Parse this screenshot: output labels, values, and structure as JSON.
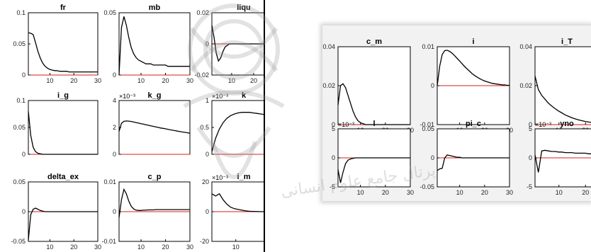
{
  "chart_data": [
    {
      "type": "line",
      "title": "fr",
      "ylim": [
        0,
        0.1
      ],
      "yticks": [
        "0",
        "0.05",
        "0.1"
      ],
      "xticks": [
        "10",
        "20",
        "30"
      ],
      "xlim": [
        1,
        30
      ],
      "series": [
        {
          "values": [
            0.068,
            0.067,
            0.065,
            0.052,
            0.038,
            0.027,
            0.019,
            0.014,
            0.011,
            0.009,
            0.008,
            0.007,
            0.007,
            0.006,
            0.006,
            0.006,
            0.006,
            0.005,
            0.005,
            0.005,
            0.005,
            0.005,
            0.005,
            0.005,
            0.005,
            0.005,
            0.005,
            0.005,
            0.005,
            0.005
          ]
        }
      ]
    },
    {
      "type": "line",
      "title": "mb",
      "ylim": [
        0,
        0.05
      ],
      "yticks": [
        "0",
        "0.05"
      ],
      "xticks": [
        "10",
        "20",
        "30"
      ],
      "xlim": [
        1,
        30
      ],
      "series": [
        {
          "values": [
            0.0,
            0.038,
            0.047,
            0.04,
            0.03,
            0.022,
            0.017,
            0.014,
            0.012,
            0.011,
            0.01,
            0.009,
            0.009,
            0.009,
            0.008,
            0.008,
            0.008,
            0.008,
            0.008,
            0.008,
            0.007,
            0.007,
            0.007,
            0.007,
            0.007,
            0.007,
            0.007,
            0.007,
            0.007,
            0.007
          ]
        }
      ]
    },
    {
      "type": "line",
      "title": "liqu",
      "ylim": [
        -0.02,
        0.02
      ],
      "yticks": [
        "-0.02",
        "0",
        "0.02"
      ],
      "xticks": [
        "10",
        "20"
      ],
      "xlim": [
        1,
        30
      ],
      "series": [
        {
          "values": [
            0.012,
            0.004,
            -0.006,
            -0.011,
            -0.009,
            -0.005,
            -0.002,
            -0.001,
            0.0,
            0.0,
            0.0,
            0.0,
            0.0,
            0.0,
            0.0,
            0.0,
            0.0,
            0.0,
            0.0,
            0.0,
            0.0,
            0.0,
            0.0,
            0.0,
            0.0,
            0.0,
            0.0,
            0.0,
            0.0,
            0.0
          ]
        }
      ]
    },
    {
      "type": "line",
      "title": "i_g",
      "ylim": [
        0,
        0.1
      ],
      "yticks": [
        "0",
        "0.05",
        "0.1"
      ],
      "xticks": [],
      "xlim": [
        1,
        30
      ],
      "series": [
        {
          "values": [
            0.08,
            0.035,
            0.013,
            0.005,
            0.002,
            0.001,
            0.0,
            0.0,
            0.0,
            0.0,
            0.0,
            0.0,
            0.0,
            0.0,
            0.0,
            0.0,
            0.0,
            0.0,
            0.0,
            0.0,
            0.0,
            0.0,
            0.0,
            0.0,
            0.0,
            0.0,
            0.0,
            0.0,
            0.0,
            0.0
          ]
        }
      ]
    },
    {
      "type": "line",
      "title": "k_g",
      "scale_note": "×10⁻³",
      "ylim": [
        0,
        4
      ],
      "yticks": [
        "0",
        "2",
        "4"
      ],
      "xticks": [],
      "xlim": [
        1,
        30
      ],
      "series": [
        {
          "values": [
            1.7,
            2.3,
            2.45,
            2.48,
            2.47,
            2.44,
            2.4,
            2.36,
            2.32,
            2.28,
            2.24,
            2.2,
            2.16,
            2.12,
            2.08,
            2.04,
            2.0,
            1.96,
            1.93,
            1.9,
            1.86,
            1.82,
            1.79,
            1.76,
            1.72,
            1.69,
            1.66,
            1.63,
            1.6,
            1.57
          ]
        }
      ]
    },
    {
      "type": "line",
      "title": "k",
      "scale_note": "×10⁻³",
      "ylim": [
        0,
        1
      ],
      "yticks": [
        "0",
        "0.5",
        "1"
      ],
      "xticks": [],
      "xlim": [
        1,
        25
      ],
      "series": [
        {
          "values": [
            0.05,
            0.3,
            0.47,
            0.59,
            0.67,
            0.72,
            0.75,
            0.77,
            0.78,
            0.78,
            0.78,
            0.77,
            0.76,
            0.75,
            0.74,
            0.72,
            0.71,
            0.7
          ]
        }
      ]
    },
    {
      "type": "line",
      "title": "delta_ex",
      "ylim": [
        -0.05,
        0.05
      ],
      "yticks": [
        "-0.05",
        "0",
        "0.05"
      ],
      "xticks": [
        "10",
        "20",
        "30"
      ],
      "xlim": [
        1,
        30
      ],
      "series": [
        {
          "values": [
            -0.048,
            -0.005,
            0.004,
            0.006,
            0.004,
            0.002,
            0.001,
            0.0,
            0.0,
            0.0,
            0.0,
            0.0,
            0.0,
            0.0,
            0.0,
            0.0,
            0.0,
            0.0,
            0.0,
            0.0,
            0.0,
            0.0,
            0.0,
            0.0,
            0.0,
            0.0,
            0.0,
            0.0,
            0.0,
            0.0
          ]
        }
      ]
    },
    {
      "type": "line",
      "title": "c_p",
      "ylim": [
        -0.01,
        0.01
      ],
      "yticks": [
        "-0.01",
        "0",
        "0.01"
      ],
      "xticks": [
        "10",
        "20",
        "30"
      ],
      "xlim": [
        1,
        30
      ],
      "series": [
        {
          "values": [
            -0.002,
            0.004,
            0.0075,
            0.006,
            0.0035,
            0.0018,
            0.0009,
            0.0005,
            0.0004,
            0.0004,
            0.0005,
            0.0005,
            0.0006,
            0.0006,
            0.0006,
            0.0007,
            0.0007,
            0.0007,
            0.0007,
            0.0007,
            0.0007,
            0.0007,
            0.0007,
            0.0007,
            0.0007,
            0.0007,
            0.0007,
            0.0007,
            0.0007,
            0.0007
          ]
        }
      ]
    },
    {
      "type": "line",
      "title": "i_m",
      "scale_note": "×10⁻³",
      "ylim": [
        -20,
        20
      ],
      "yticks": [
        "-20",
        "0",
        "20"
      ],
      "xticks": [
        "10"
      ],
      "xlim": [
        1,
        25
      ],
      "series": [
        {
          "values": [
            12,
            10.5,
            12,
            8,
            5,
            3,
            2,
            1.5,
            1,
            0.5,
            0.3,
            0.2,
            0.1,
            0,
            0,
            0,
            0,
            0
          ]
        }
      ]
    },
    {
      "type": "line",
      "title": "c_m",
      "ylim": [
        0,
        0.04
      ],
      "yticks": [
        "0",
        "0.02",
        "0.04"
      ],
      "xticks": [
        "10",
        "20",
        "30"
      ],
      "xlim": [
        1,
        30
      ],
      "series": [
        {
          "values": [
            0.01,
            0.02,
            0.021,
            0.019,
            0.015,
            0.011,
            0.007,
            0.004,
            0.002,
            0.001,
            0.0005,
            0.0,
            0.0,
            0.0,
            0.0,
            0.0,
            0.0,
            0.0,
            0.0,
            0.0,
            0.0,
            0.0,
            0.0,
            0.0,
            0.0,
            0.0,
            0.0,
            0.0,
            0.0,
            0.0
          ]
        }
      ]
    },
    {
      "type": "line",
      "title": "i",
      "ylim": [
        -0.01,
        0.01
      ],
      "yticks": [
        "-0.01",
        "0",
        "0.01"
      ],
      "xticks": [
        "10",
        "20",
        "30"
      ],
      "xlim": [
        1,
        30
      ],
      "series": [
        {
          "values": [
            0.0,
            0.005,
            0.008,
            0.009,
            0.0091,
            0.0088,
            0.0083,
            0.0077,
            0.007,
            0.0063,
            0.0056,
            0.0049,
            0.0043,
            0.0037,
            0.0031,
            0.0026,
            0.0022,
            0.0018,
            0.0015,
            0.0012,
            0.001,
            0.0008,
            0.0006,
            0.0005,
            0.0004,
            0.0003,
            0.0002,
            0.0002,
            0.0001,
            0.0001
          ]
        }
      ]
    },
    {
      "type": "line",
      "title": "i_T",
      "ylim": [
        0,
        0.04
      ],
      "yticks": [
        "0",
        "0.02",
        "0.04"
      ],
      "xticks": [
        "10",
        "20"
      ],
      "xlim": [
        1,
        25
      ],
      "series": [
        {
          "values": [
            0.025,
            0.018,
            0.015,
            0.013,
            0.011,
            0.0095,
            0.0082,
            0.007,
            0.006,
            0.005,
            0.0042,
            0.0035,
            0.0029,
            0.0024,
            0.002,
            0.0016,
            0.0013,
            0.001,
            0.0008,
            0.0006
          ]
        }
      ]
    },
    {
      "type": "line",
      "title": "l",
      "scale_note": "×10⁻³",
      "ylim": [
        -5,
        5
      ],
      "yticks": [
        "-5",
        "0",
        "5"
      ],
      "xticks": [
        "10",
        "20",
        "30"
      ],
      "xlim": [
        1,
        30
      ],
      "series": [
        {
          "values": [
            -2,
            -4.3,
            -2.5,
            -1.0,
            -0.4,
            -0.2,
            -0.1,
            0.0,
            0.0,
            0.0,
            0.0,
            0.0,
            0.0,
            0.0,
            0.0,
            0.0,
            0.0,
            0.0,
            0.0,
            0.0,
            0.0,
            0.0,
            0.0,
            0.0,
            0.0,
            0.0,
            0.0,
            0.0,
            0.0,
            0.0
          ]
        }
      ]
    },
    {
      "type": "line",
      "title": "pi_c",
      "ylim": [
        -0.05,
        0.05
      ],
      "yticks": [
        "-0.05",
        "0",
        "0.05"
      ],
      "xticks": [
        "10",
        "20",
        "30"
      ],
      "xlim": [
        1,
        30
      ],
      "series": [
        {
          "values": [
            -0.022,
            -0.019,
            -0.018,
            0.0,
            0.005,
            0.004,
            0.003,
            0.002,
            0.001,
            0.001,
            0.0,
            0.0,
            0.0,
            0.0,
            0.0,
            0.0,
            0.0,
            0.0,
            0.0,
            0.0,
            0.0,
            0.0,
            0.0,
            0.0,
            0.0,
            0.0,
            0.0,
            0.0,
            0.0,
            0.0
          ]
        }
      ]
    },
    {
      "type": "line",
      "title": "yno",
      "scale_note": "×10⁻³",
      "ylim": [
        -5,
        5
      ],
      "yticks": [
        "-5",
        "0",
        "5"
      ],
      "xticks": [
        "10",
        "20"
      ],
      "xlim": [
        1,
        25
      ],
      "series": [
        {
          "values": [
            0.5,
            -2.5,
            1.2,
            1.3,
            1.2,
            1.1,
            1.1,
            1.0,
            1.0,
            0.9,
            0.9,
            0.9,
            0.8,
            0.8,
            0.8,
            0.8,
            0.7,
            0.7,
            0.7,
            0.7
          ]
        }
      ]
    }
  ],
  "watermark_text": "پرتال جامع علوم انسانی"
}
